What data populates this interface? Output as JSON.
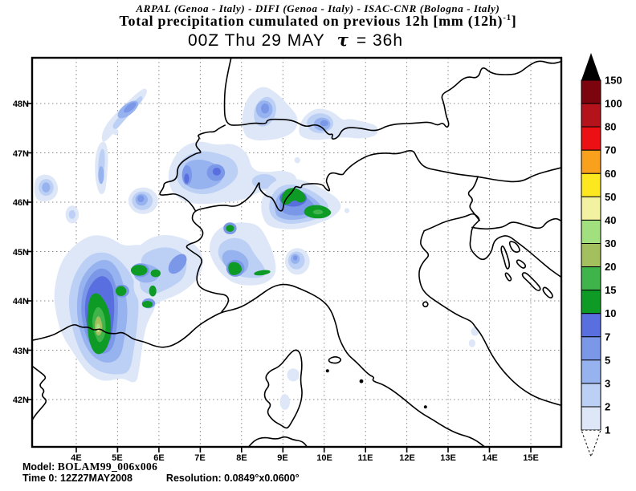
{
  "header": {
    "credit_line": "ARPAL (Genoa - Italy)  -  DIFI (Genoa - Italy)  -  ISAC-CNR (Bologna - Italy)",
    "title_main": "Total precipitation cumulated on previous 12h [mm (12h)",
    "title_sup": "-1",
    "title_end": "]",
    "valid_time": "00Z Thu 29 MAY",
    "tau": "τ",
    "tau_eq": "= 36h"
  },
  "map": {
    "lat_labels": [
      "48N",
      "47N",
      "46N",
      "45N",
      "44N",
      "43N",
      "42N"
    ],
    "lon_labels": [
      "4E",
      "5E",
      "6E",
      "7E",
      "8E",
      "9E",
      "10E",
      "11E",
      "12E",
      "13E",
      "14E",
      "15E"
    ],
    "grid_color": "#8a8a8a",
    "coast_color": "#000000"
  },
  "palette": {
    "c1": "#dde7f8",
    "c2": "#bccff4",
    "c3": "#97b3ef",
    "c4": "#7b97e8",
    "c5": "#5a6fdf",
    "c10": "#0d9b26",
    "c15": "#3eb44b",
    "c20": "#a4bf5e",
    "c30": "#a2df7f",
    "c40": "#f2f2a2",
    "c50": "#fde81f",
    "c60": "#f9a11d",
    "c70": "#ec1014",
    "c80": "#b5131b",
    "c100": "#7c040e",
    "c150": "#000000",
    "below_min": "#ffffff"
  },
  "colorbar": {
    "levels": [
      "150",
      "100",
      "80",
      "70",
      "60",
      "50",
      "40",
      "30",
      "20",
      "15",
      "10",
      "7",
      "5",
      "3",
      "2",
      "1"
    ],
    "segment_keys_top_to_bottom": [
      "c100",
      "c80",
      "c70",
      "c60",
      "c50",
      "c40",
      "c30",
      "c20",
      "c15",
      "c10",
      "c5",
      "c4",
      "c3",
      "c2",
      "c1"
    ]
  },
  "footer": {
    "model_label": "Model:",
    "model_value": "BOLAM99_006x006",
    "time_label": "Time 0:",
    "time_value": "12Z27MAY2008",
    "resolution_label": "Resolution:",
    "resolution_value": "0.0849°x0.0600°"
  }
}
